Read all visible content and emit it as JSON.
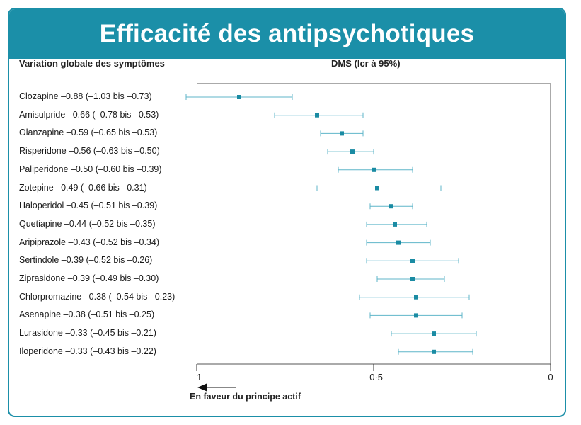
{
  "header": {
    "title": "Efficacité des antipsychotiques"
  },
  "columns": {
    "left": "Variation globale des symptômes",
    "right": "DMS (Icr à 95%)"
  },
  "axis": {
    "favour_label": "En faveur du principe actif"
  },
  "colors": {
    "accent": "#1b8fa8",
    "marker": "#1a8ba3",
    "whisker": "#5fb6c9"
  },
  "chart_data": {
    "type": "forest",
    "title": "Efficacité des antipsychotiques",
    "xlabel": "DMS (Icr à 95%)",
    "ylabel": "Variation globale des symptômes",
    "xlim": [
      -1,
      0
    ],
    "xticks": [
      -1,
      -0.5,
      0
    ],
    "xtick_labels": [
      "–1",
      "–0·5",
      "0"
    ],
    "rows": [
      {
        "drug": "Clozapine",
        "est": -0.88,
        "lo": -1.03,
        "hi": -0.73,
        "label": "Clozapine –0.88 (–1.03 bis –0.73)"
      },
      {
        "drug": "Amisulpride",
        "est": -0.66,
        "lo": -0.78,
        "hi": -0.53,
        "label": "Amisulpride –0.66 (–0.78 bis –0.53)"
      },
      {
        "drug": "Olanzapine",
        "est": -0.59,
        "lo": -0.65,
        "hi": -0.53,
        "label": "Olanzapine –0.59 (–0.65 bis –0.53)"
      },
      {
        "drug": "Risperidone",
        "est": -0.56,
        "lo": -0.63,
        "hi": -0.5,
        "label": "Risperidone –0.56 (–0.63 bis –0.50)"
      },
      {
        "drug": "Paliperidone",
        "est": -0.5,
        "lo": -0.6,
        "hi": -0.39,
        "label": "Paliperidone –0.50 (–0.60 bis –0.39)"
      },
      {
        "drug": "Zotepine",
        "est": -0.49,
        "lo": -0.66,
        "hi": -0.31,
        "label": "Zotepine –0.49 (–0.66 bis –0.31)"
      },
      {
        "drug": "Haloperidol",
        "est": -0.45,
        "lo": -0.51,
        "hi": -0.39,
        "label": "Haloperidol –0.45 (–0.51 bis –0.39)"
      },
      {
        "drug": "Quetiapine",
        "est": -0.44,
        "lo": -0.52,
        "hi": -0.35,
        "label": "Quetiapine –0.44 (–0.52 bis –0.35)"
      },
      {
        "drug": "Aripiprazole",
        "est": -0.43,
        "lo": -0.52,
        "hi": -0.34,
        "label": "Aripiprazole –0.43 (–0.52 bis –0.34)"
      },
      {
        "drug": "Sertindole",
        "est": -0.39,
        "lo": -0.52,
        "hi": -0.26,
        "label": "Sertindole –0.39 (–0.52 bis –0.26)"
      },
      {
        "drug": "Ziprasidone",
        "est": -0.39,
        "lo": -0.49,
        "hi": -0.3,
        "label": "Ziprasidone –0.39 (–0.49 bis –0.30)"
      },
      {
        "drug": "Chlorpromazine",
        "est": -0.38,
        "lo": -0.54,
        "hi": -0.23,
        "label": "Chlorpromazine –0.38 (–0.54 bis –0.23)"
      },
      {
        "drug": "Asenapine",
        "est": -0.38,
        "lo": -0.51,
        "hi": -0.25,
        "label": "Asenapine –0.38 (–0.51 bis –0.25)"
      },
      {
        "drug": "Lurasidone",
        "est": -0.33,
        "lo": -0.45,
        "hi": -0.21,
        "label": "Lurasidone –0.33 (–0.45 bis –0.21)"
      },
      {
        "drug": "Iloperidone",
        "est": -0.33,
        "lo": -0.43,
        "hi": -0.22,
        "label": "Iloperidone –0.33 (–0.43 bis –0.22)"
      }
    ]
  }
}
